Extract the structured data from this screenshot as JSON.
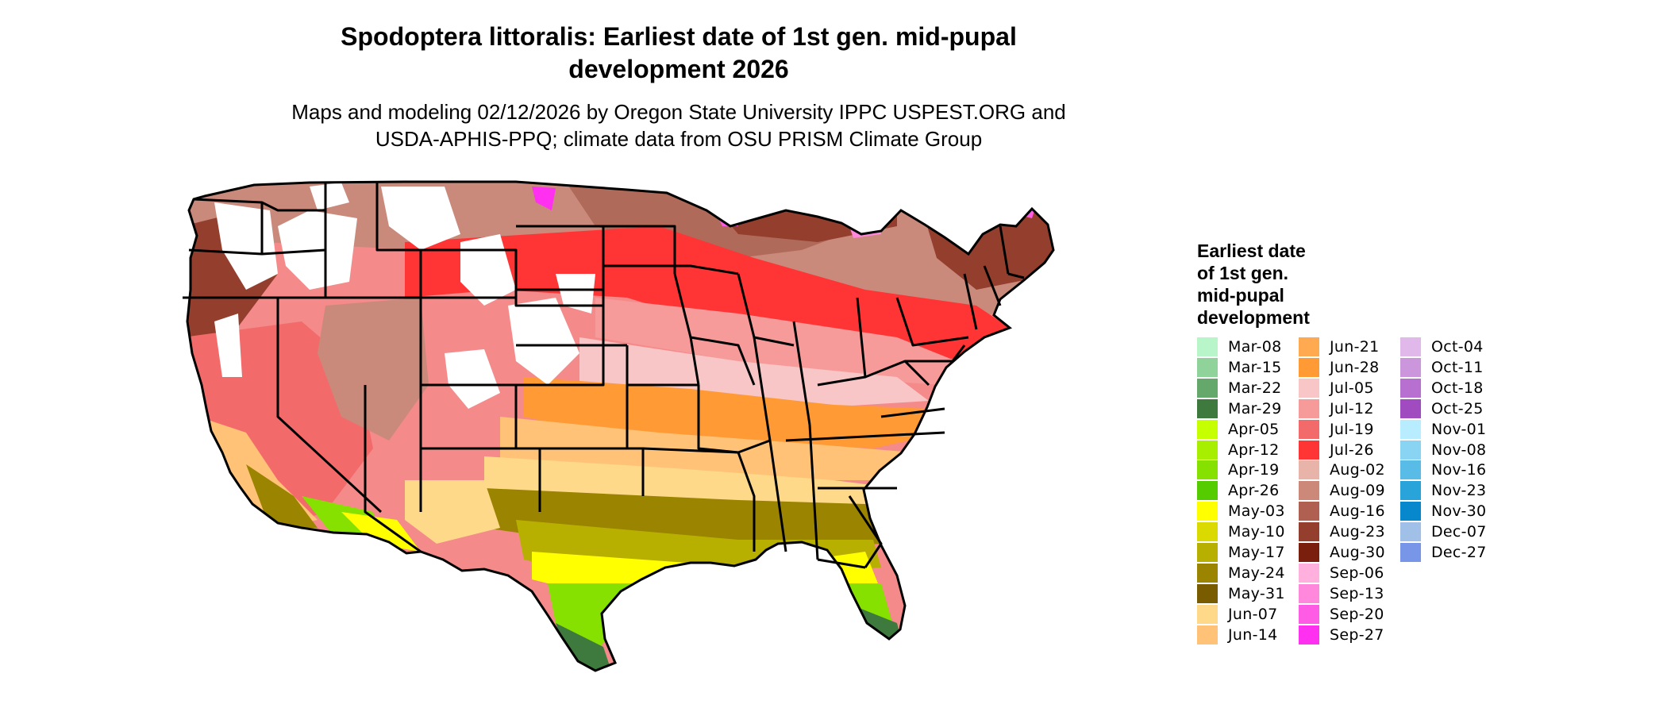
{
  "title": "Spodoptera littoralis: Earliest date of 1st gen. mid-pupal development 2026",
  "title_line1": "Spodoptera littoralis: Earliest date of 1st gen. mid-pupal",
  "title_line2": "development 2026",
  "subtitle_line1": "Maps and modeling 02/12/2026 by Oregon State University IPPC USPEST.ORG and",
  "subtitle_line2": "USDA-APHIS-PPQ; climate data from OSU PRISM Climate Group",
  "legend": {
    "title_lines": [
      "Earliest date",
      "of 1st gen.",
      "mid-pupal",
      "development"
    ],
    "items": [
      {
        "label": "Mar-08",
        "color": "#b8f5c8"
      },
      {
        "label": "Mar-15",
        "color": "#8fd29a"
      },
      {
        "label": "Mar-22",
        "color": "#64a86c"
      },
      {
        "label": "Mar-29",
        "color": "#3e7a3e"
      },
      {
        "label": "Apr-05",
        "color": "#c6ff00"
      },
      {
        "label": "Apr-12",
        "color": "#a8ee00"
      },
      {
        "label": "Apr-19",
        "color": "#86e000"
      },
      {
        "label": "Apr-26",
        "color": "#55cc00"
      },
      {
        "label": "May-03",
        "color": "#ffff00"
      },
      {
        "label": "May-10",
        "color": "#dada00"
      },
      {
        "label": "May-17",
        "color": "#b8b000"
      },
      {
        "label": "May-24",
        "color": "#9a8400"
      },
      {
        "label": "May-31",
        "color": "#7a5c00"
      },
      {
        "label": "Jun-07",
        "color": "#ffd98a"
      },
      {
        "label": "Jun-14",
        "color": "#ffc277"
      },
      {
        "label": "Jun-21",
        "color": "#ffaa50"
      },
      {
        "label": "Jun-28",
        "color": "#ff9a35"
      },
      {
        "label": "Jul-05",
        "color": "#f8c6c6"
      },
      {
        "label": "Jul-12",
        "color": "#f79a9a"
      },
      {
        "label": "Jul-19",
        "color": "#f36a6a"
      },
      {
        "label": "Jul-26",
        "color": "#ff3535"
      },
      {
        "label": "Aug-02",
        "color": "#e8b4aa"
      },
      {
        "label": "Aug-09",
        "color": "#cc8878"
      },
      {
        "label": "Aug-16",
        "color": "#b06050"
      },
      {
        "label": "Aug-23",
        "color": "#943e2e"
      },
      {
        "label": "Aug-30",
        "color": "#7a1e0e"
      },
      {
        "label": "Sep-06",
        "color": "#ffb0dc"
      },
      {
        "label": "Sep-13",
        "color": "#ff88dd"
      },
      {
        "label": "Sep-20",
        "color": "#ff5ce6"
      },
      {
        "label": "Sep-27",
        "color": "#ff30f0"
      },
      {
        "label": "Oct-04",
        "color": "#e0b8ea"
      },
      {
        "label": "Oct-11",
        "color": "#cc96dc"
      },
      {
        "label": "Oct-18",
        "color": "#b870d0"
      },
      {
        "label": "Oct-25",
        "color": "#a04cc0"
      },
      {
        "label": "Nov-01",
        "color": "#b8ecff"
      },
      {
        "label": "Nov-08",
        "color": "#88d4f2"
      },
      {
        "label": "Nov-16",
        "color": "#58bce6"
      },
      {
        "label": "Nov-23",
        "color": "#28a4da"
      },
      {
        "label": "Nov-30",
        "color": "#0888cc"
      },
      {
        "label": "Dec-07",
        "color": "#a0c0e8"
      },
      {
        "label": "Dec-27",
        "color": "#7896e8"
      }
    ]
  }
}
